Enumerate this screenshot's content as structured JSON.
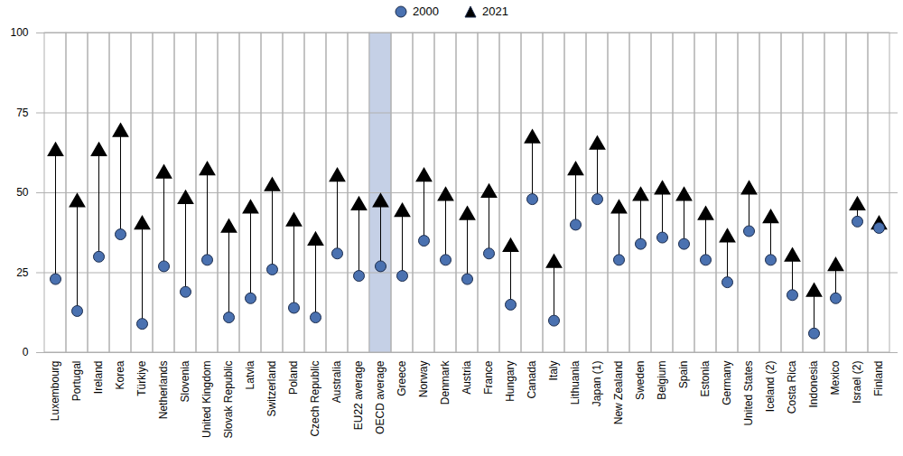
{
  "chart_data": {
    "type": "dumbbell",
    "categories": [
      "Luxembourg",
      "Portugal",
      "Ireland",
      "Korea",
      "Türkiye",
      "Netherlands",
      "Slovenia",
      "United Kingdom",
      "Slovak Republic",
      "Latvia",
      "Switzerland",
      "Poland",
      "Czech Republic",
      "Australia",
      "EU22 average",
      "OECD average",
      "Greece",
      "Norway",
      "Denmark",
      "Austria",
      "France",
      "Hungary",
      "Canada",
      "Italy",
      "Lithuania",
      "Japan (1)",
      "New Zealand",
      "Sweden",
      "Belgium",
      "Spain",
      "Estonia",
      "Germany",
      "United States",
      "Iceland (2)",
      "Costa Rica",
      "Indonesia",
      "Mexico",
      "Israel (2)",
      "Finland"
    ],
    "series": [
      {
        "name": "2000",
        "color": "#4a71b0",
        "marker": "circle",
        "values": [
          23,
          13,
          30,
          37,
          9,
          27,
          19,
          29,
          11,
          17,
          26,
          14,
          11,
          31,
          24,
          27,
          24,
          35,
          29,
          23,
          31,
          15,
          48,
          10,
          40,
          48,
          29,
          34,
          36,
          34,
          29,
          22,
          38,
          29,
          18,
          6,
          17,
          41,
          39
        ]
      },
      {
        "name": "2021",
        "color": "#000000",
        "marker": "triangle",
        "values": [
          63,
          47,
          63,
          69,
          40,
          56,
          48,
          57,
          39,
          45,
          52,
          41,
          35,
          55,
          46,
          47,
          44,
          55,
          49,
          43,
          50,
          33,
          67,
          28,
          57,
          65,
          45,
          49,
          51,
          49,
          43,
          36,
          51,
          42,
          30,
          19,
          27,
          46,
          40
        ]
      }
    ],
    "highlight": [
      "OECD average"
    ],
    "ylim": [
      0,
      100
    ],
    "yticks": [
      0,
      25,
      50,
      75,
      100
    ],
    "grid": true,
    "legend": "top"
  }
}
